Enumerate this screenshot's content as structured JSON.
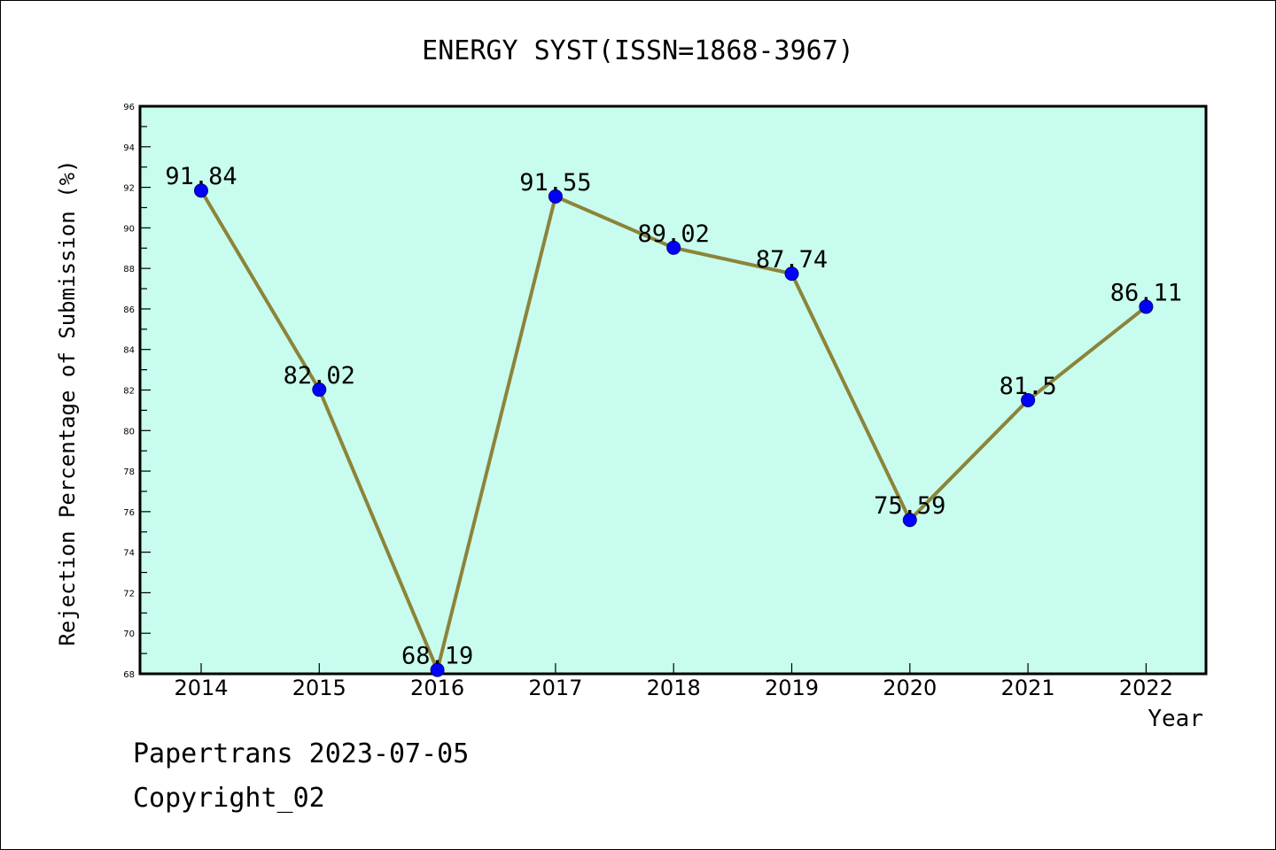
{
  "title": "ENERGY SYST(ISSN=1868-3967)",
  "footer": {
    "line1": "Papertrans 2023-07-05",
    "line2": "Copyright_02"
  },
  "chart_data": {
    "type": "line",
    "title": "ENERGY SYST(ISSN=1868-3967)",
    "xlabel": "Year",
    "ylabel": "Rejection Percentage of Submission (%)",
    "ylim": [
      68,
      96
    ],
    "yticks": [
      68,
      70,
      72,
      74,
      76,
      78,
      80,
      82,
      84,
      86,
      88,
      90,
      92,
      94,
      96
    ],
    "categories": [
      "2014",
      "2015",
      "2016",
      "2017",
      "2018",
      "2019",
      "2020",
      "2021",
      "2022"
    ],
    "values": [
      91.84,
      82.02,
      68.19,
      91.55,
      89.02,
      87.74,
      75.59,
      81.5,
      86.11
    ],
    "data_labels": [
      "91.84",
      "82.02",
      "68.19",
      "91.55",
      "89.02",
      "87.74",
      "75.59",
      "81.5",
      "86.11"
    ],
    "grid": false,
    "colors": {
      "plot_background": "#c8fcee",
      "line": "#8b8439",
      "marker": "#0000ff"
    }
  }
}
